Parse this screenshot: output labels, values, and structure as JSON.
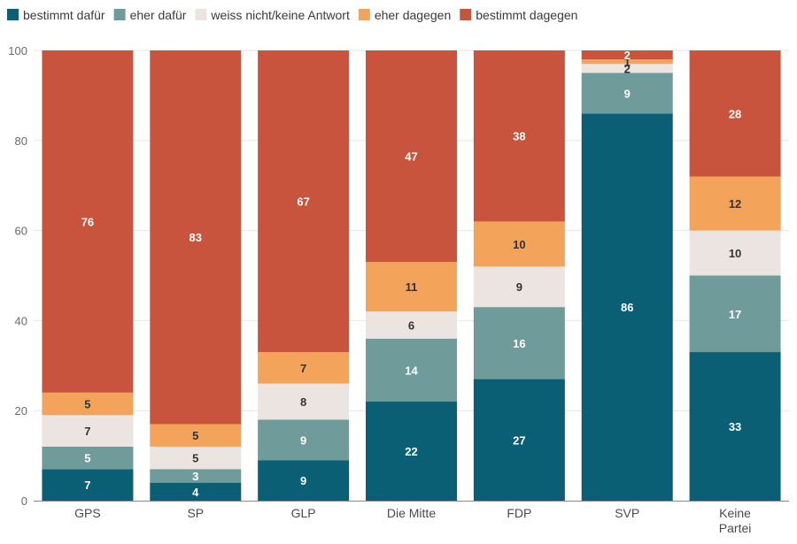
{
  "chart_data": {
    "type": "bar",
    "stacked": true,
    "categories": [
      "GPS",
      "SP",
      "GLP",
      "Die Mitte",
      "FDP",
      "SVP",
      "Keine Partei"
    ],
    "series": [
      {
        "name": "bestimmt dafür",
        "color": "#0b5f74",
        "label_color": "#ffffff",
        "values": [
          7,
          4,
          9,
          22,
          27,
          86,
          33
        ]
      },
      {
        "name": "eher dafür",
        "color": "#6f9c9a",
        "label_color": "#ffffff",
        "values": [
          5,
          3,
          9,
          14,
          16,
          9,
          17
        ]
      },
      {
        "name": "weiss nicht/keine Antwort",
        "color": "#ebe4e1",
        "label_color": "#333333",
        "values": [
          7,
          5,
          8,
          6,
          9,
          2,
          10
        ]
      },
      {
        "name": "eher dagegen",
        "color": "#f3a35a",
        "label_color": "#333333",
        "values": [
          5,
          5,
          7,
          11,
          10,
          1,
          12
        ]
      },
      {
        "name": "bestimmt dagegen",
        "color": "#c8543e",
        "label_color": "#ffffff",
        "values": [
          76,
          83,
          67,
          47,
          38,
          2,
          28
        ]
      }
    ],
    "y_ticks": [
      0,
      20,
      40,
      60,
      80,
      100
    ],
    "ylim": [
      0,
      100
    ],
    "grid": true,
    "legend_position": "top-left"
  }
}
